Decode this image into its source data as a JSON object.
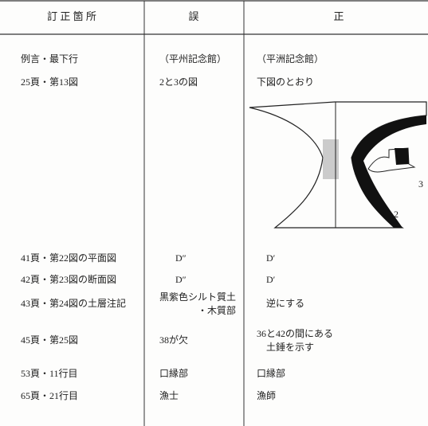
{
  "header": [
    "訂 正 箇 所",
    "誤",
    "正"
  ],
  "rows": [
    [
      "例言・最下行",
      "（平州記念館）",
      "（平洲記念館）"
    ],
    [
      "25頁・第13図",
      "2と3の図",
      "下図のとおり"
    ],
    [
      "41頁・第22図の平面図",
      "D″",
      "D′"
    ],
    [
      "42頁・第23図の断面図",
      "D″",
      "D′"
    ],
    [
      "43頁・第24図の土層注記",
      [
        "黒紫色シルト質土",
        "・木質部"
      ],
      "逆にする"
    ],
    [
      "45頁・第25図",
      "38が欠",
      [
        "36と42の間にある",
        "土錘を示す"
      ]
    ],
    [
      "53頁・11行目",
      "口縁部",
      "口縁部"
    ],
    [
      "65頁・21行目",
      "漁士",
      "漁師"
    ]
  ],
  "figure": {
    "labels": [
      "3",
      "2"
    ]
  }
}
